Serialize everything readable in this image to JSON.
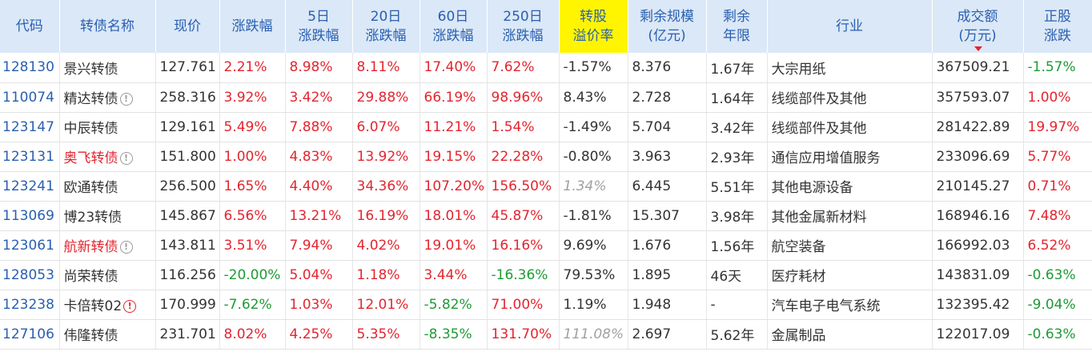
{
  "headers": [
    [
      "代码"
    ],
    [
      "转债名称"
    ],
    [
      "现价"
    ],
    [
      "涨跌幅"
    ],
    [
      "5日",
      "涨跌幅"
    ],
    [
      "20日",
      "涨跌幅"
    ],
    [
      "60日",
      "涨跌幅"
    ],
    [
      "250日",
      "涨跌幅"
    ],
    [
      "转股",
      "溢价率"
    ],
    [
      "剩余规模",
      "(亿元)"
    ],
    [
      "剩余",
      "年限"
    ],
    [
      "行业"
    ],
    [
      "成交额",
      "(万元)"
    ],
    [
      "正股",
      "涨跌"
    ]
  ],
  "rows": [
    {
      "code": "128130",
      "name": "景兴转债",
      "price": "127.761",
      "chg": "2.21%",
      "d5": "8.98%",
      "d20": "8.11%",
      "d60": "17.40%",
      "d250": "7.62%",
      "premium": "-1.57%",
      "size": "8.376",
      "years": "1.67年",
      "industry": "大宗用纸",
      "amount": "367509.21",
      "stock": "-1.57%"
    },
    {
      "code": "110074",
      "name": "精达转债",
      "price": "258.316",
      "chg": "3.92%",
      "d5": "3.42%",
      "d20": "29.88%",
      "d60": "66.19%",
      "d250": "98.96%",
      "premium": "8.43%",
      "size": "2.728",
      "years": "1.64年",
      "industry": "线缆部件及其他",
      "amount": "357593.07",
      "stock": "1.00%"
    },
    {
      "code": "123147",
      "name": "中辰转债",
      "price": "129.161",
      "chg": "5.49%",
      "d5": "7.88%",
      "d20": "6.07%",
      "d60": "11.21%",
      "d250": "1.54%",
      "premium": "-1.49%",
      "size": "5.704",
      "years": "3.42年",
      "industry": "线缆部件及其他",
      "amount": "281422.89",
      "stock": "19.97%"
    },
    {
      "code": "123131",
      "name": "奥飞转债",
      "price": "151.800",
      "chg": "1.00%",
      "d5": "4.83%",
      "d20": "13.92%",
      "d60": "19.15%",
      "d250": "22.28%",
      "premium": "-0.80%",
      "size": "3.963",
      "years": "2.93年",
      "industry": "通信应用增值服务",
      "amount": "233096.69",
      "stock": "5.77%"
    },
    {
      "code": "123241",
      "name": "欧通转债",
      "price": "256.500",
      "chg": "1.65%",
      "d5": "4.40%",
      "d20": "34.36%",
      "d60": "107.20%",
      "d250": "156.50%",
      "premium": "1.34%",
      "size": "6.445",
      "years": "5.51年",
      "industry": "其他电源设备",
      "amount": "210145.27",
      "stock": "0.71%"
    },
    {
      "code": "113069",
      "name": "博23转债",
      "price": "145.867",
      "chg": "6.56%",
      "d5": "13.21%",
      "d20": "16.19%",
      "d60": "18.01%",
      "d250": "45.87%",
      "premium": "-1.81%",
      "size": "15.307",
      "years": "3.98年",
      "industry": "其他金属新材料",
      "amount": "168946.16",
      "stock": "7.48%"
    },
    {
      "code": "123061",
      "name": "航新转债",
      "price": "143.811",
      "chg": "3.51%",
      "d5": "7.94%",
      "d20": "4.02%",
      "d60": "19.01%",
      "d250": "16.16%",
      "premium": "9.69%",
      "size": "1.676",
      "years": "1.56年",
      "industry": "航空装备",
      "amount": "166992.03",
      "stock": "6.52%"
    },
    {
      "code": "128053",
      "name": "尚荣转债",
      "price": "116.256",
      "chg": "-20.00%",
      "d5": "5.04%",
      "d20": "1.18%",
      "d60": "3.44%",
      "d250": "-16.36%",
      "premium": "79.53%",
      "size": "1.895",
      "years": "46天",
      "industry": "医疗耗材",
      "amount": "143831.09",
      "stock": "-0.63%"
    },
    {
      "code": "123238",
      "name": "卡倍转02",
      "price": "170.999",
      "chg": "-7.62%",
      "d5": "1.03%",
      "d20": "12.01%",
      "d60": "-5.82%",
      "d250": "71.00%",
      "premium": "1.19%",
      "size": "1.948",
      "years": "-",
      "industry": "汽车电子电气系统",
      "amount": "132395.42",
      "stock": "-9.04%"
    },
    {
      "code": "127106",
      "name": "伟隆转债",
      "price": "231.701",
      "chg": "8.02%",
      "d5": "4.25%",
      "d20": "5.35%",
      "d60": "-8.35%",
      "d250": "131.70%",
      "premium": "111.08%",
      "size": "2.697",
      "years": "5.62年",
      "industry": "金属制品",
      "amount": "122017.09",
      "stock": "-0.63%"
    }
  ],
  "row_style": [
    {
      "name_color": "normal",
      "icon": "none",
      "premium_muted": false
    },
    {
      "name_color": "normal",
      "icon": "gray",
      "premium_muted": false
    },
    {
      "name_color": "normal",
      "icon": "none",
      "premium_muted": false
    },
    {
      "name_color": "red",
      "icon": "gray",
      "premium_muted": false
    },
    {
      "name_color": "normal",
      "icon": "none",
      "premium_muted": true
    },
    {
      "name_color": "normal",
      "icon": "none",
      "premium_muted": false
    },
    {
      "name_color": "red",
      "icon": "gray",
      "premium_muted": false
    },
    {
      "name_color": "normal",
      "icon": "none",
      "premium_muted": false
    },
    {
      "name_color": "normal",
      "icon": "red",
      "premium_muted": false
    },
    {
      "name_color": "normal",
      "icon": "none",
      "premium_muted": true
    }
  ],
  "icons": {
    "info_icon_glyph": "!",
    "sort_indicator": "sort-desc-arrow-icon"
  },
  "colors": {
    "up": "#e3252f",
    "down": "#1e9b35",
    "header_bg": "#dbe8f7",
    "highlight_header": "#fff500",
    "link": "#2a5fb0"
  }
}
